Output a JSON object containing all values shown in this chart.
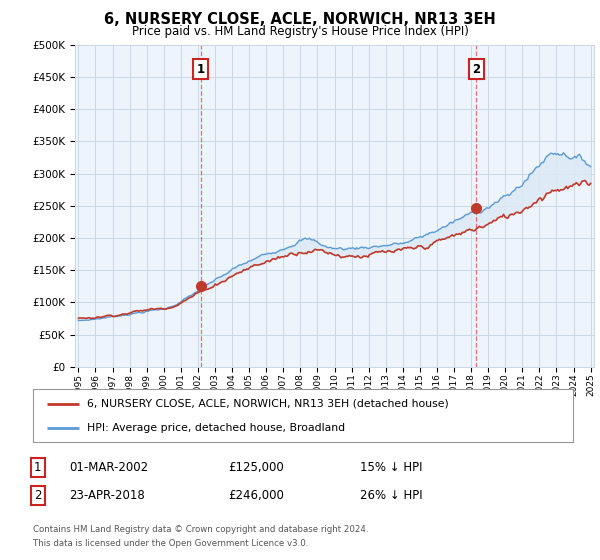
{
  "title": "6, NURSERY CLOSE, ACLE, NORWICH, NR13 3EH",
  "subtitle": "Price paid vs. HM Land Registry's House Price Index (HPI)",
  "ylim": [
    0,
    500000
  ],
  "yticks": [
    0,
    50000,
    100000,
    150000,
    200000,
    250000,
    300000,
    350000,
    400000,
    450000,
    500000
  ],
  "ytick_labels": [
    "£0",
    "£50K",
    "£100K",
    "£150K",
    "£200K",
    "£250K",
    "£300K",
    "£350K",
    "£400K",
    "£450K",
    "£500K"
  ],
  "hpi_color": "#5b9bd5",
  "hpi_fill_color": "#dce9f5",
  "price_color": "#c0392b",
  "marker1_date": 2002.17,
  "marker2_date": 2018.31,
  "marker1_price": 125000,
  "marker2_price": 246000,
  "legend_line1": "6, NURSERY CLOSE, ACLE, NORWICH, NR13 3EH (detached house)",
  "legend_line2": "HPI: Average price, detached house, Broadland",
  "table_row1": [
    "1",
    "01-MAR-2002",
    "£125,000",
    "15% ↓ HPI"
  ],
  "table_row2": [
    "2",
    "23-APR-2018",
    "£246,000",
    "26% ↓ HPI"
  ],
  "footnote1": "Contains HM Land Registry data © Crown copyright and database right 2024.",
  "footnote2": "This data is licensed under the Open Government Licence v3.0.",
  "background_color": "#ffffff",
  "chart_bg_color": "#eef4fb",
  "grid_color": "#c8d8e8",
  "xstart": 1995,
  "xend": 2025
}
